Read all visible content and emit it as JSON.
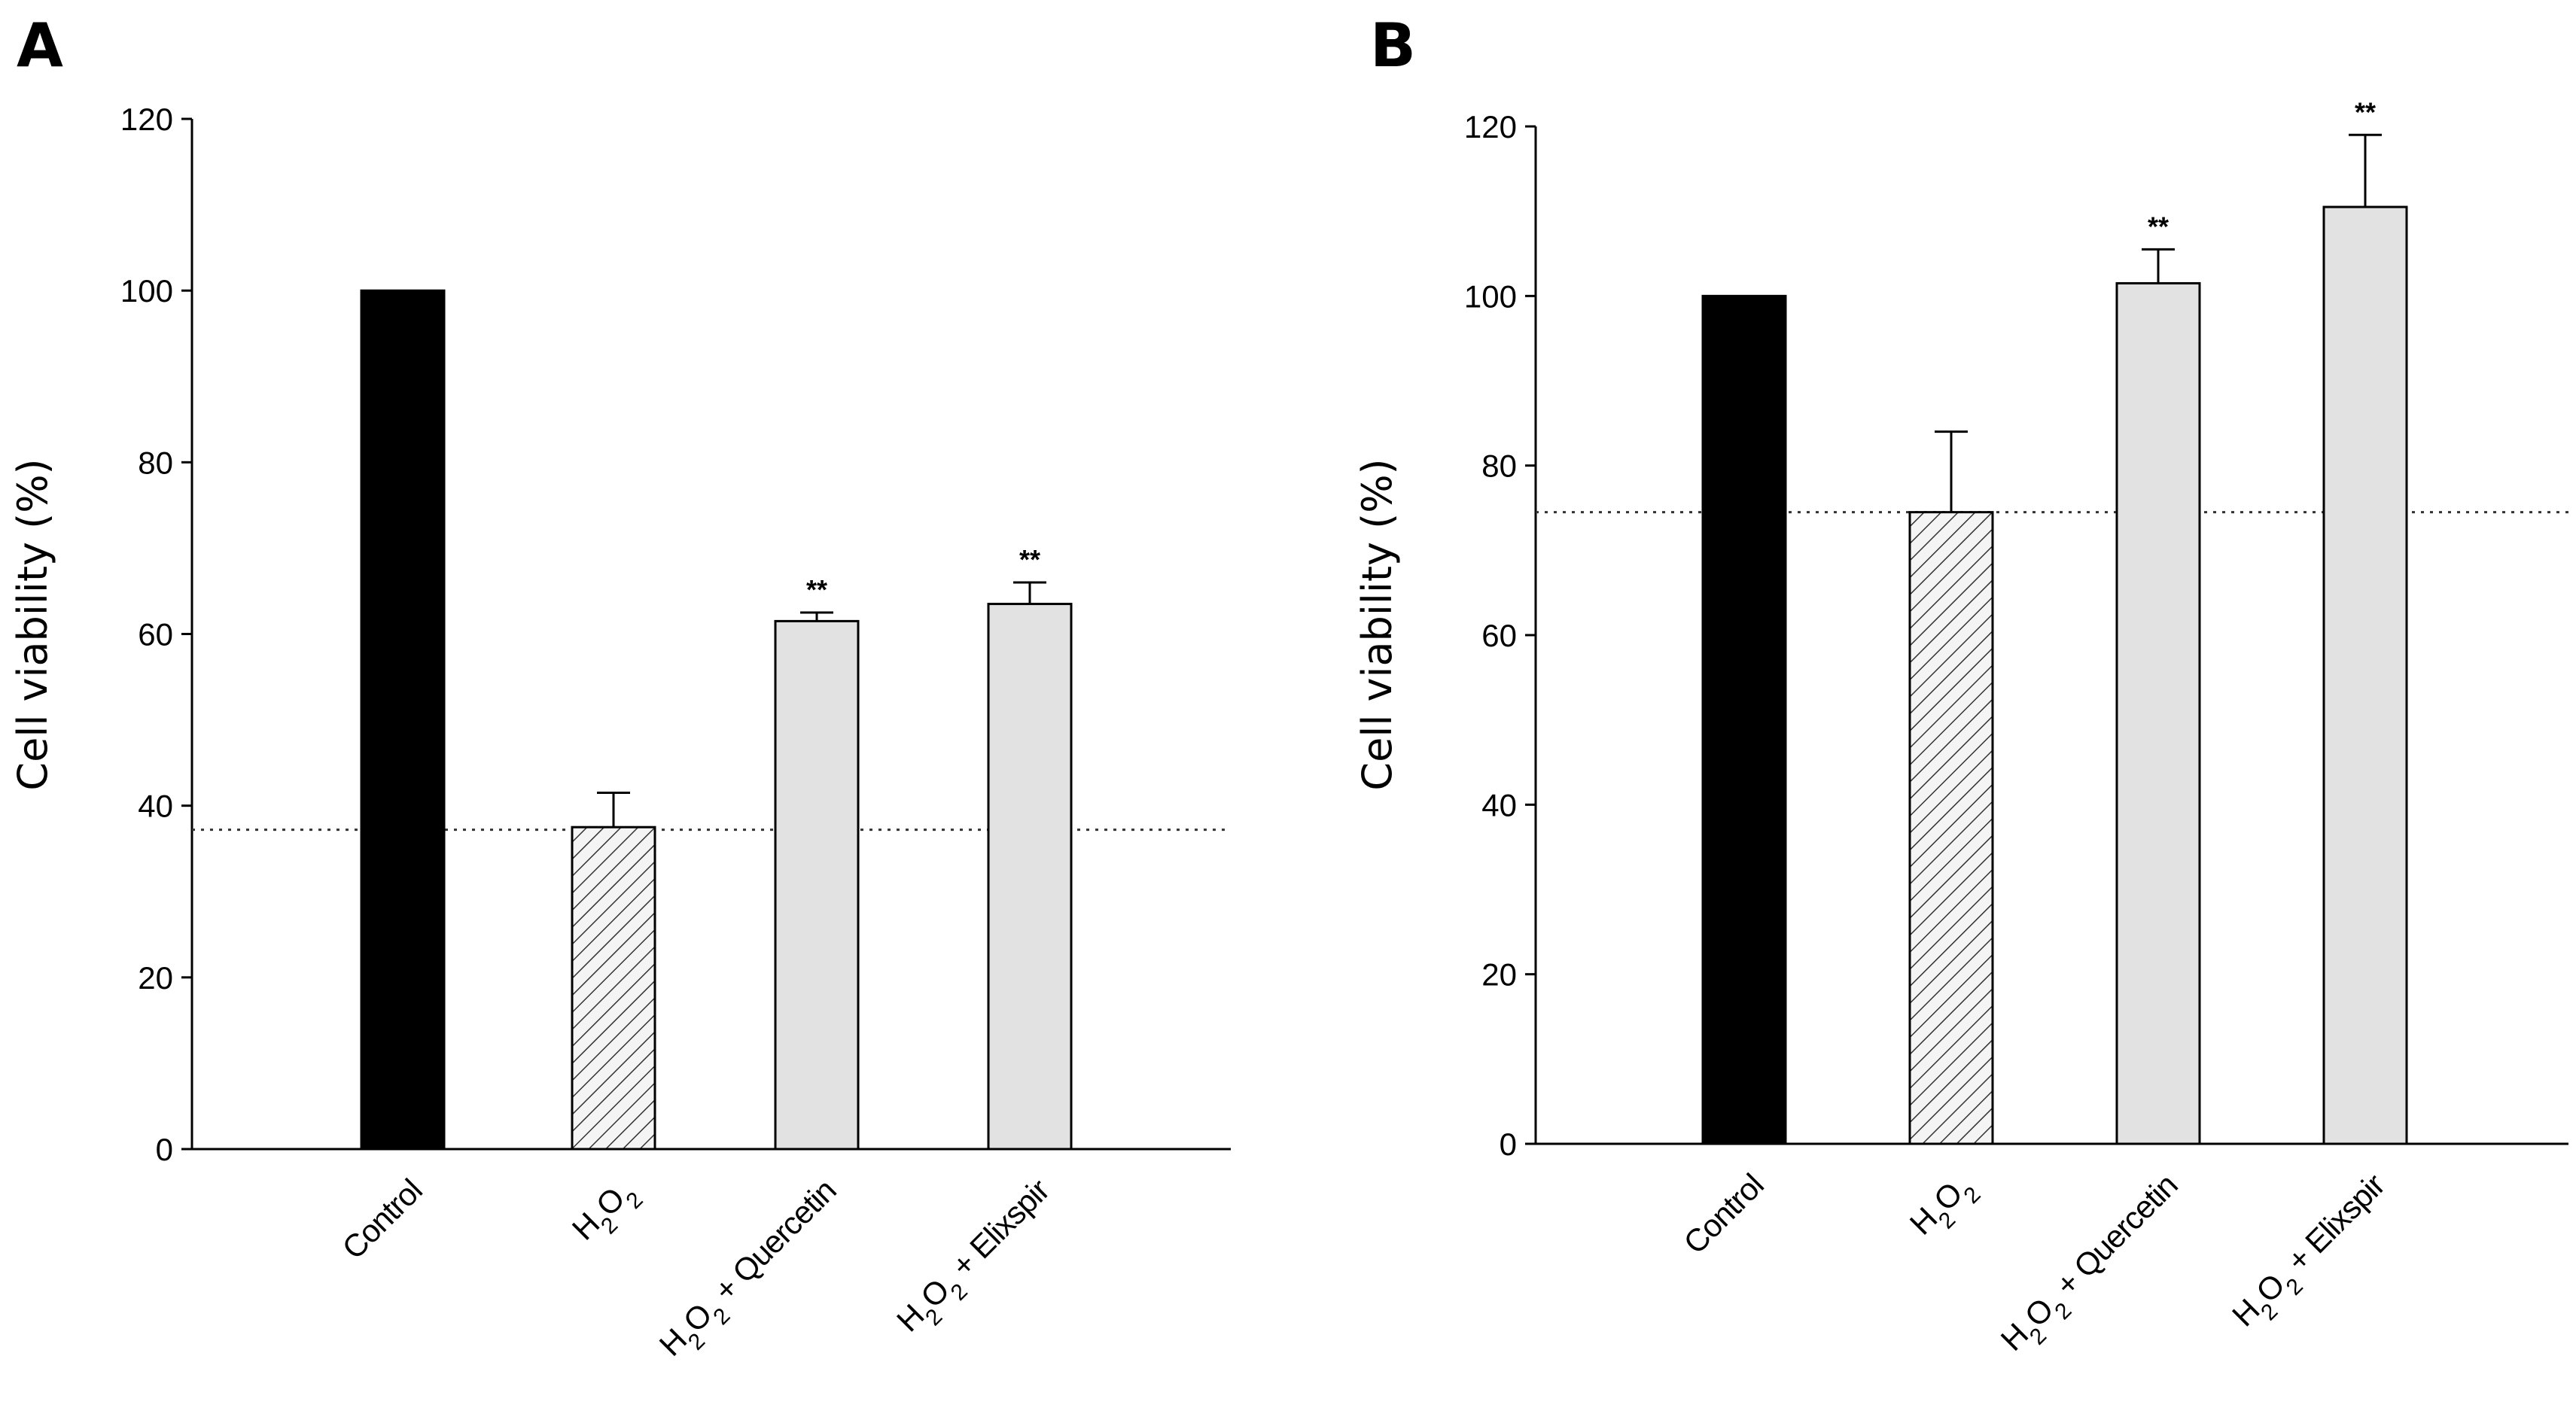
{
  "colors": {
    "control": "#000000",
    "treated": "#e2e2e2",
    "hatch": "#c8c8c8",
    "reference_line": "#333366"
  },
  "chart_data": [
    {
      "panel": "A",
      "type": "bar",
      "ylabel": "Cell viability (%)",
      "ylim": [
        0,
        120
      ],
      "yticks": [
        "0",
        "20",
        "40",
        "60",
        "80",
        "100",
        "120"
      ],
      "categories": [
        "Control",
        "H2O2",
        "H2O2 + Quercetin",
        "H2O2 + Elixspir"
      ],
      "category_labels": [
        {
          "parts": [
            {
              "t": "Control"
            }
          ]
        },
        {
          "parts": [
            {
              "t": "H"
            },
            {
              "t": "2",
              "sub": true
            },
            {
              "t": "O"
            },
            {
              "t": "2",
              "sub": true
            }
          ]
        },
        {
          "parts": [
            {
              "t": "H"
            },
            {
              "t": "2",
              "sub": true
            },
            {
              "t": "O"
            },
            {
              "t": "2",
              "sub": true
            },
            {
              "t": " + Quercetin"
            }
          ]
        },
        {
          "parts": [
            {
              "t": "H"
            },
            {
              "t": "2",
              "sub": true
            },
            {
              "t": "O"
            },
            {
              "t": "2",
              "sub": true
            },
            {
              "t": " + Elixspir"
            }
          ]
        }
      ],
      "values": [
        100,
        37.5,
        61.5,
        63.5
      ],
      "errors": [
        0,
        4,
        1,
        2.5
      ],
      "fills": [
        "solid",
        "hatch",
        "light",
        "light"
      ],
      "significance": [
        "",
        "",
        "**",
        "**"
      ],
      "reference_line": 37.2
    },
    {
      "panel": "B",
      "type": "bar",
      "ylabel": "Cell viability (%)",
      "ylim": [
        0,
        120
      ],
      "yticks": [
        "0",
        "20",
        "40",
        "60",
        "80",
        "100",
        "120"
      ],
      "categories": [
        "Control",
        "H2O2",
        "H2O2 + Quercetin",
        "H2O2 + Elixspir"
      ],
      "category_labels": [
        {
          "parts": [
            {
              "t": "Control"
            }
          ]
        },
        {
          "parts": [
            {
              "t": "H"
            },
            {
              "t": "2",
              "sub": true
            },
            {
              "t": "O"
            },
            {
              "t": "2",
              "sub": true
            }
          ]
        },
        {
          "parts": [
            {
              "t": "H"
            },
            {
              "t": "2",
              "sub": true
            },
            {
              "t": "O"
            },
            {
              "t": "2",
              "sub": true
            },
            {
              "t": " + Quercetin"
            }
          ]
        },
        {
          "parts": [
            {
              "t": "H"
            },
            {
              "t": "2",
              "sub": true
            },
            {
              "t": "O"
            },
            {
              "t": "2",
              "sub": true
            },
            {
              "t": " + Elixspir"
            }
          ]
        }
      ],
      "values": [
        100,
        74.5,
        101.5,
        110.5
      ],
      "errors": [
        0,
        9.5,
        4,
        8.5
      ],
      "fills": [
        "solid",
        "hatch",
        "light",
        "light"
      ],
      "significance": [
        "",
        "",
        "**",
        "**"
      ],
      "reference_line": 74.5
    }
  ]
}
